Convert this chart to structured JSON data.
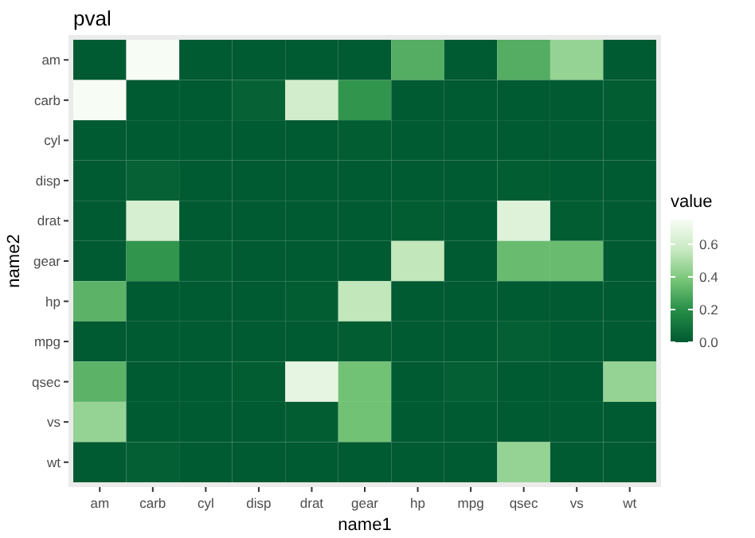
{
  "chart_data": {
    "type": "heatmap",
    "title": "pval",
    "xlabel": "name1",
    "ylabel": "name2",
    "legend_title": "value",
    "categories": [
      "am",
      "carb",
      "cyl",
      "disp",
      "drat",
      "gear",
      "hp",
      "mpg",
      "qsec",
      "vs",
      "wt"
    ],
    "y_categories": [
      "am",
      "carb",
      "cyl",
      "disp",
      "drat",
      "gear",
      "hp",
      "mpg",
      "qsec",
      "vs",
      "wt"
    ],
    "cells": [
      [
        0,
        0.75,
        0,
        0,
        0,
        0,
        0.3,
        0,
        0.3,
        0.45,
        0
      ],
      [
        0.75,
        0,
        0,
        0.03,
        0.6,
        0.22,
        0,
        0,
        0,
        0,
        0.01
      ],
      [
        0,
        0,
        0,
        0,
        0,
        0.01,
        0,
        0,
        0,
        0,
        0
      ],
      [
        0,
        0.03,
        0,
        0,
        0,
        0,
        0,
        0,
        0.01,
        0,
        0
      ],
      [
        0,
        0.62,
        0,
        0,
        0,
        0,
        0.01,
        0,
        0.65,
        0.01,
        0
      ],
      [
        0,
        0.22,
        0.01,
        0,
        0,
        0,
        0.55,
        0,
        0.35,
        0.35,
        0
      ],
      [
        0.32,
        0,
        0,
        0,
        0.01,
        0.55,
        0,
        0,
        0,
        0,
        0
      ],
      [
        0,
        0,
        0,
        0,
        0,
        0.01,
        0,
        0,
        0.02,
        0,
        0
      ],
      [
        0.32,
        0,
        0,
        0.01,
        0.68,
        0.37,
        0,
        0.02,
        0,
        0,
        0.45
      ],
      [
        0.45,
        0,
        0,
        0,
        0.01,
        0.37,
        0,
        0,
        0,
        0,
        0
      ],
      [
        0,
        0.02,
        0,
        0,
        0,
        0,
        0,
        0,
        0.45,
        0,
        0
      ]
    ],
    "clim": [
      0,
      0.75
    ],
    "cticks": [
      {
        "value": 0,
        "label": "0.0"
      },
      {
        "value": 0.2,
        "label": "0.2"
      },
      {
        "value": 0.4,
        "label": "0.4"
      },
      {
        "value": 0.6,
        "label": "0.6"
      }
    ]
  }
}
